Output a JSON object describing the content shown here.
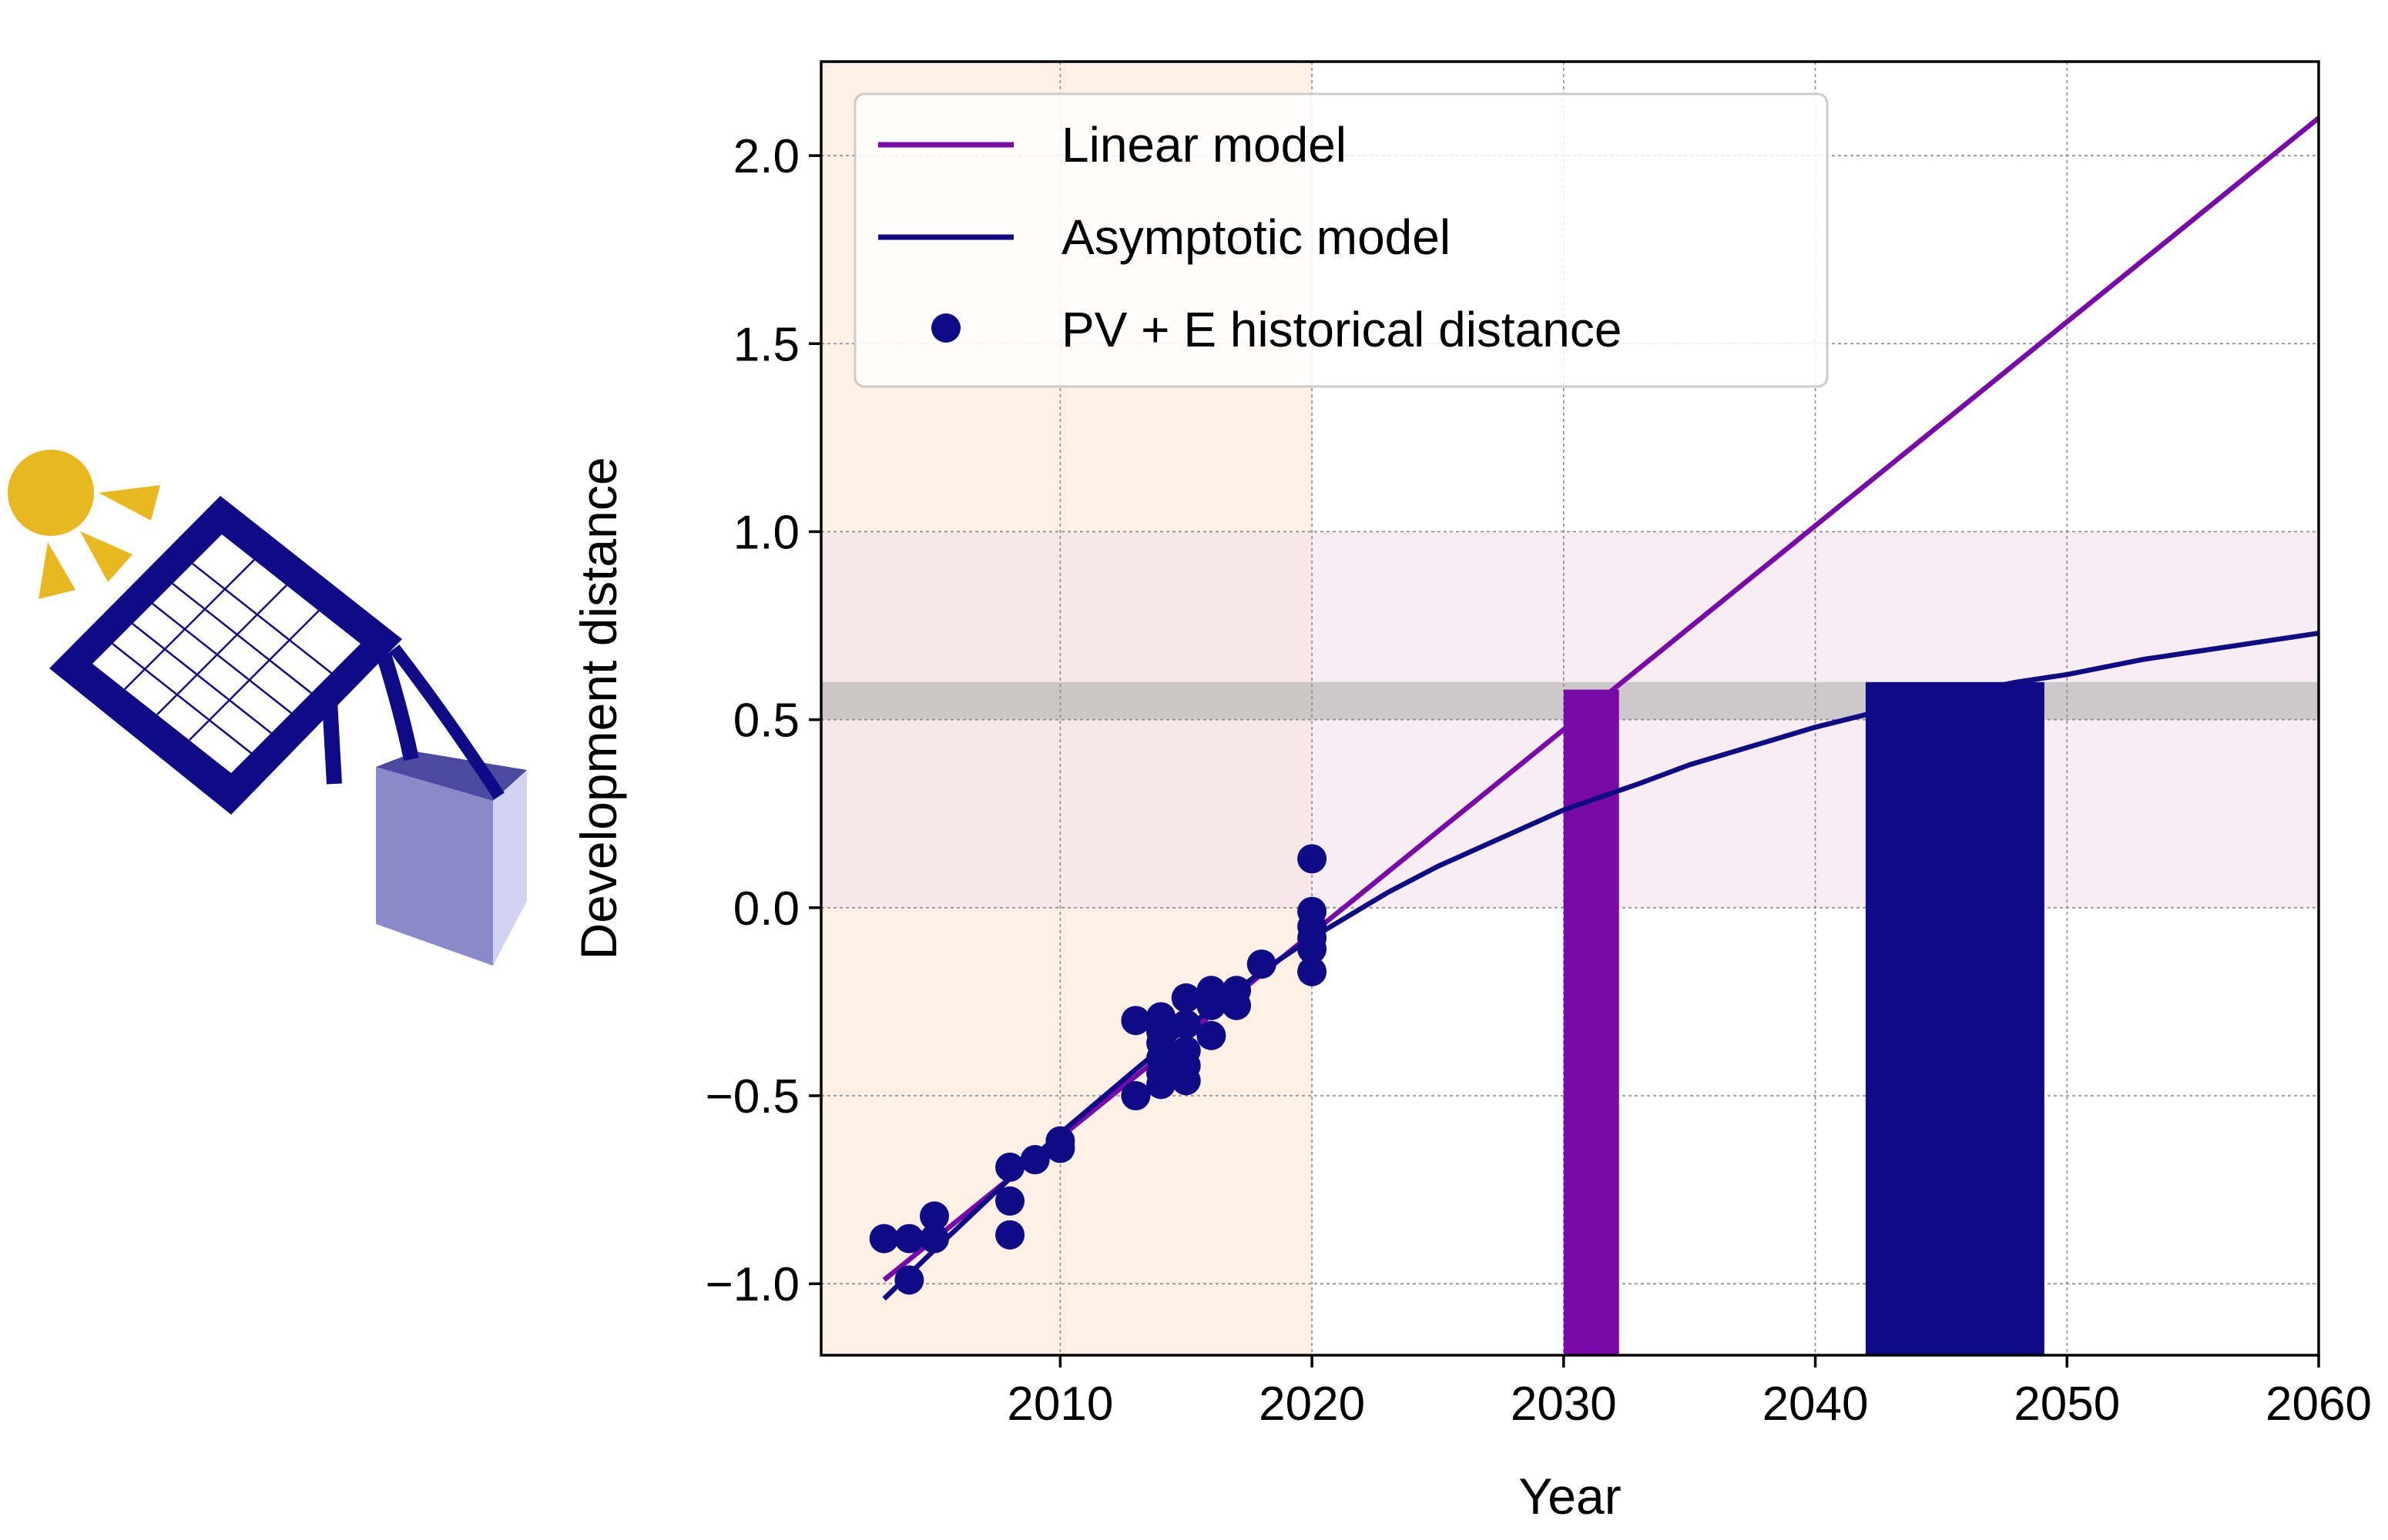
{
  "chart_data": {
    "type": "line",
    "title": "",
    "xlabel": "Year",
    "ylabel": "Development distance",
    "xlim": [
      2000.5,
      2060
    ],
    "ylim": [
      -1.19,
      2.25
    ],
    "xticks": [
      2010,
      2020,
      2030,
      2040,
      2050,
      2060
    ],
    "xtick_labels": [
      "2010",
      "2020",
      "2030",
      "2040",
      "2050",
      "2060"
    ],
    "yticks": [
      -1.0,
      -0.5,
      0.0,
      0.5,
      1.0,
      1.5,
      2.0
    ],
    "ytick_labels": [
      "−1.0",
      "−0.5",
      "0.0",
      "0.5",
      "1.0",
      "1.5",
      "2.0"
    ],
    "grid": true,
    "legend": "upper-left",
    "shaded_regions": [
      {
        "kind": "x-span",
        "from": 2000.5,
        "to": 2020,
        "color": "#fdf0e3"
      },
      {
        "kind": "y-span",
        "from": 0.0,
        "to": 1.0,
        "color": "#f3e1ea"
      },
      {
        "kind": "y-span",
        "from": 0.5,
        "to": 0.6,
        "color": "#b0b0b0"
      }
    ],
    "series": [
      {
        "name": "Linear model",
        "kind": "line",
        "color": "#7a0aa8",
        "x": [
          2003,
          2060
        ],
        "y": [
          -0.99,
          2.1
        ]
      },
      {
        "name": "Asymptotic model",
        "kind": "line",
        "color": "#0f0a85",
        "x": [
          2003,
          2005,
          2008,
          2010,
          2013,
          2015,
          2018,
          2020,
          2023,
          2025,
          2028,
          2030,
          2033,
          2035,
          2038,
          2040,
          2043,
          2045,
          2048,
          2050,
          2053,
          2055,
          2058,
          2060
        ],
        "y": [
          -1.04,
          -0.91,
          -0.72,
          -0.6,
          -0.43,
          -0.32,
          -0.17,
          -0.08,
          0.04,
          0.11,
          0.2,
          0.26,
          0.33,
          0.38,
          0.44,
          0.48,
          0.53,
          0.56,
          0.6,
          0.62,
          0.66,
          0.68,
          0.71,
          0.73
        ]
      },
      {
        "name": "PV + E historical distance",
        "kind": "scatter",
        "color": "#0f0a85",
        "points": [
          [
            2003,
            -0.88
          ],
          [
            2004,
            -0.88
          ],
          [
            2004,
            -0.99
          ],
          [
            2005,
            -0.82
          ],
          [
            2005,
            -0.88
          ],
          [
            2008,
            -0.69
          ],
          [
            2008,
            -0.78
          ],
          [
            2008,
            -0.87
          ],
          [
            2009,
            -0.67
          ],
          [
            2010,
            -0.62
          ],
          [
            2010,
            -0.64
          ],
          [
            2013,
            -0.3
          ],
          [
            2013,
            -0.5
          ],
          [
            2014,
            -0.29
          ],
          [
            2014,
            -0.33
          ],
          [
            2014,
            -0.36
          ],
          [
            2014,
            -0.4
          ],
          [
            2014,
            -0.44
          ],
          [
            2014,
            -0.47
          ],
          [
            2015,
            -0.24
          ],
          [
            2015,
            -0.31
          ],
          [
            2015,
            -0.38
          ],
          [
            2015,
            -0.42
          ],
          [
            2015,
            -0.46
          ],
          [
            2016,
            -0.22
          ],
          [
            2016,
            -0.26
          ],
          [
            2016,
            -0.34
          ],
          [
            2017,
            -0.22
          ],
          [
            2017,
            -0.26
          ],
          [
            2018,
            -0.15
          ],
          [
            2020,
            0.13
          ],
          [
            2020,
            -0.01
          ],
          [
            2020,
            -0.05
          ],
          [
            2020,
            -0.08
          ],
          [
            2020,
            -0.11
          ],
          [
            2020,
            -0.17
          ]
        ]
      }
    ],
    "threshold_bars": [
      {
        "series": "Linear model",
        "color": "#7a0aa8",
        "x_from": 2030,
        "x_to": 2032.2,
        "y_from": -1.19,
        "y_to": 0.58
      },
      {
        "series": "Asymptotic model",
        "color": "#0f0a85",
        "x_from": 2042,
        "x_to": 2049.1,
        "y_from": -1.19,
        "y_to": 0.6
      }
    ]
  },
  "illustration": {
    "icon": "solar-panel-battery-icon",
    "sun_color": "#e8b820",
    "panel_color": "#0f0a85",
    "battery_color": "#8a8ac8"
  }
}
